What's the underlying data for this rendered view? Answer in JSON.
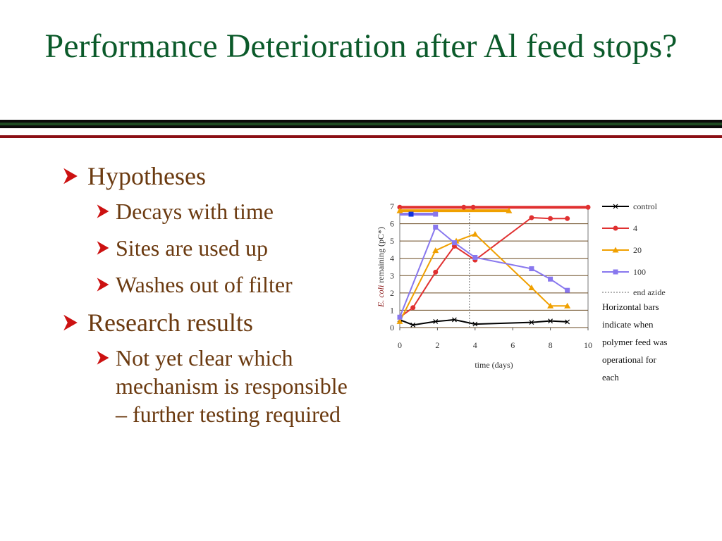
{
  "title": "Performance Deterioration after Al feed stops?",
  "bullets": [
    {
      "label": "Hypotheses",
      "children": [
        "Decays with time",
        "Sites are used up",
        "Washes out of filter"
      ]
    },
    {
      "label": "Research results",
      "children": [
        "Not yet clear which mechanism is responsible – further testing required"
      ]
    }
  ],
  "colors": {
    "title": "#0b5a2a",
    "bullet_text": "#6b3a10",
    "arrow": "#cc1111"
  },
  "chart_data": {
    "type": "line",
    "xlabel": "time (days)",
    "ylabel_italic": "E. coli",
    "ylabel_rest": "remaining (pC*)",
    "xlim": [
      0,
      10
    ],
    "ylim": [
      0,
      7
    ],
    "xticks": [
      0,
      2,
      4,
      6,
      8,
      10
    ],
    "yticks": [
      0,
      1,
      2,
      3,
      4,
      5,
      6,
      7
    ],
    "grid": "horizontal",
    "legend_position": "right",
    "series": [
      {
        "name": "control",
        "color": "#000000",
        "marker": "x",
        "x": [
          0,
          0.7,
          1.9,
          2.9,
          4,
          7,
          8,
          8.9
        ],
        "y": [
          0.45,
          0.15,
          0.35,
          0.45,
          0.2,
          0.3,
          0.38,
          0.33
        ]
      },
      {
        "name": "4",
        "color": "#e03030",
        "marker": "circle",
        "x": [
          0,
          0.7,
          1.9,
          2.9,
          4,
          7,
          8,
          8.9
        ],
        "y": [
          0.6,
          1.15,
          3.2,
          4.7,
          3.9,
          6.35,
          6.3,
          6.3
        ]
      },
      {
        "name": "20",
        "color": "#f0a000",
        "marker": "triangle",
        "x": [
          0,
          1.9,
          3,
          4,
          7,
          8,
          8.9
        ],
        "y": [
          0.35,
          4.45,
          5.0,
          5.4,
          2.3,
          1.25,
          1.25
        ]
      },
      {
        "name": "100",
        "color": "#8877ee",
        "marker": "square",
        "x": [
          0,
          1.9,
          2.9,
          4,
          7,
          8,
          8.9
        ],
        "y": [
          0.6,
          5.8,
          4.9,
          4.05,
          3.4,
          2.8,
          2.15
        ]
      }
    ],
    "feed_bars": [
      {
        "series": "4",
        "x_start": 0,
        "x_end": 10,
        "y": 6.95,
        "color": "#e03030"
      },
      {
        "series": "20",
        "x_start": 0,
        "x_end": 5.8,
        "y": 6.75,
        "color": "#f0a000"
      },
      {
        "series": "100",
        "x_start": 0,
        "x_end": 1.9,
        "y": 6.55,
        "color": "#8877ee"
      }
    ],
    "end_azide_x": 3.7,
    "end_azide_label": "end azide",
    "note": "Horizontal bars indicate when polymer feed was operational for each"
  }
}
